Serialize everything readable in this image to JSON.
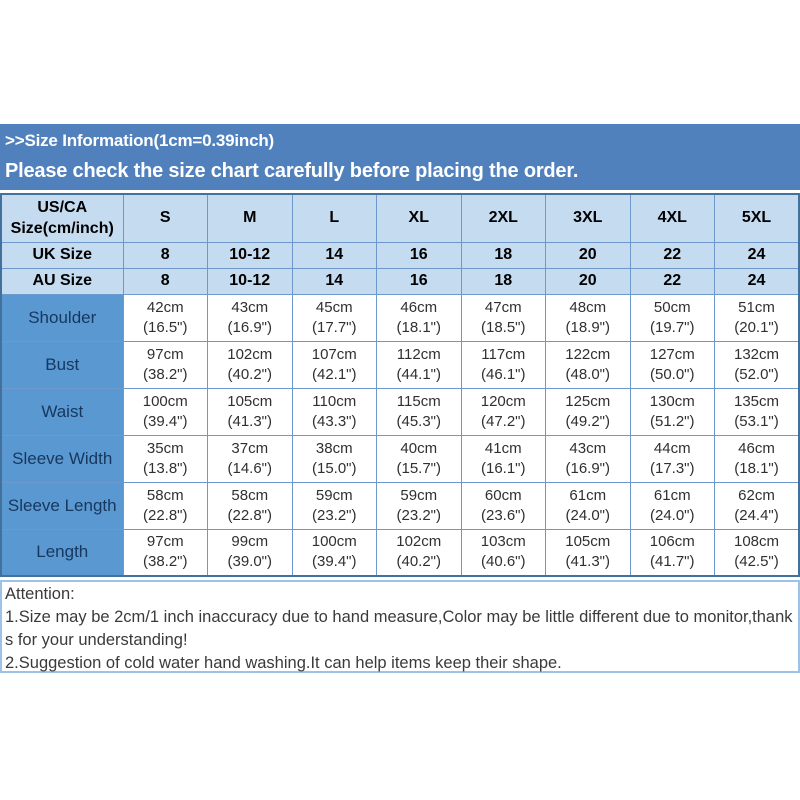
{
  "chart_data": {
    "type": "table",
    "title": ">>Size Information(1cm=0.39inch)",
    "subtitle": "Please check the size chart carefully before placing the order.",
    "header": [
      "US/CA Size(cm/inch)",
      "S",
      "M",
      "L",
      "XL",
      "2XL",
      "3XL",
      "4XL",
      "5XL"
    ],
    "size_rows": [
      {
        "label": "UK Size",
        "values": [
          "8",
          "10-12",
          "14",
          "16",
          "18",
          "20",
          "22",
          "24"
        ]
      },
      {
        "label": "AU Size",
        "values": [
          "8",
          "10-12",
          "14",
          "16",
          "18",
          "20",
          "22",
          "24"
        ]
      }
    ],
    "measurement_rows": [
      {
        "label": "Shoulder",
        "cm": [
          "42cm",
          "43cm",
          "45cm",
          "46cm",
          "47cm",
          "48cm",
          "50cm",
          "51cm"
        ],
        "inch": [
          "(16.5\")",
          "(16.9\")",
          "(17.7\")",
          "(18.1\")",
          "(18.5\")",
          "(18.9\")",
          "(19.7\")",
          "(20.1\")"
        ]
      },
      {
        "label": "Bust",
        "cm": [
          "97cm",
          "102cm",
          "107cm",
          "112cm",
          "117cm",
          "122cm",
          "127cm",
          "132cm"
        ],
        "inch": [
          "(38.2\")",
          "(40.2\")",
          "(42.1\")",
          "(44.1\")",
          "(46.1\")",
          "(48.0\")",
          "(50.0\")",
          "(52.0\")"
        ]
      },
      {
        "label": "Waist",
        "cm": [
          "100cm",
          "105cm",
          "110cm",
          "115cm",
          "120cm",
          "125cm",
          "130cm",
          "135cm"
        ],
        "inch": [
          "(39.4\")",
          "(41.3\")",
          "(43.3\")",
          "(45.3\")",
          "(47.2\")",
          "(49.2\")",
          "(51.2\")",
          "(53.1\")"
        ]
      },
      {
        "label": "Sleeve Width",
        "cm": [
          "35cm",
          "37cm",
          "38cm",
          "40cm",
          "41cm",
          "43cm",
          "44cm",
          "46cm"
        ],
        "inch": [
          "(13.8\")",
          "(14.6\")",
          "(15.0\")",
          "(15.7\")",
          "(16.1\")",
          "(16.9\")",
          "(17.3\")",
          "(18.1\")"
        ]
      },
      {
        "label": "Sleeve Length",
        "cm": [
          "58cm",
          "58cm",
          "59cm",
          "59cm",
          "60cm",
          "61cm",
          "61cm",
          "62cm"
        ],
        "inch": [
          "(22.8\")",
          "(22.8\")",
          "(23.2\")",
          "(23.2\")",
          "(23.6\")",
          "(24.0\")",
          "(24.0\")",
          "(24.4\")"
        ]
      },
      {
        "label": "Length",
        "cm": [
          "97cm",
          "99cm",
          "100cm",
          "102cm",
          "103cm",
          "105cm",
          "106cm",
          "108cm"
        ],
        "inch": [
          "(38.2\")",
          "(39.0\")",
          "(39.4\")",
          "(40.2\")",
          "(40.6\")",
          "(41.3\")",
          "(41.7\")",
          "(42.5\")"
        ]
      }
    ]
  },
  "attention": {
    "heading": "Attention:",
    "notes": [
      "1.Size may be 2cm/1 inch inaccuracy due to hand measure,Color may be little different due to monitor,thanks for your understanding!",
      "2.Suggestion of cold water hand washing.It can help items keep their shape."
    ]
  },
  "colors": {
    "banner_bg": "#5181bd",
    "banner_text": "#ffffff",
    "header_cell_bg": "#c5dbf0",
    "label_cell_bg": "#5a98d2",
    "label_text": "#17375d",
    "table_border": "#41719c",
    "cell_border": "#6d99cc",
    "attention_border": "#9cc3e5"
  }
}
